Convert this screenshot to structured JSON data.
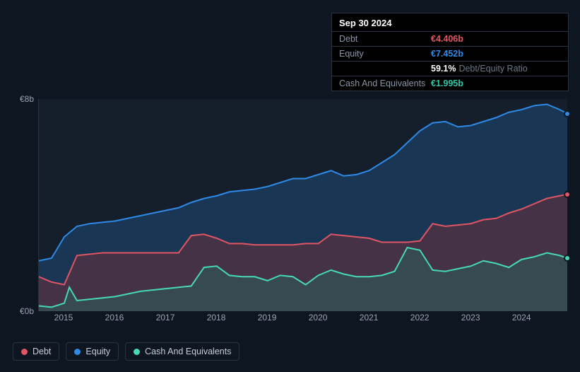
{
  "tooltip": {
    "date": "Sep 30 2024",
    "rows": [
      {
        "label": "Debt",
        "value": "€4.406b",
        "color": "#e05563",
        "extra": ""
      },
      {
        "label": "Equity",
        "value": "€7.452b",
        "color": "#2e8ae6",
        "extra": ""
      },
      {
        "label": "",
        "value": "59.1%",
        "color": "#ffffff",
        "extra": "Debt/Equity Ratio"
      },
      {
        "label": "Cash And Equivalents",
        "value": "€1.995b",
        "color": "#30c8a8",
        "extra": ""
      }
    ]
  },
  "chart": {
    "type": "area-line",
    "background_color": "#151e2b",
    "page_background": "#0e1621",
    "grid_color": "#2a3340",
    "y": {
      "min": 0,
      "max": 8,
      "ticks": [
        {
          "v": 0,
          "label": "€0b"
        },
        {
          "v": 8,
          "label": "€8b"
        }
      ],
      "label_color": "#9aa4b2",
      "label_fontsize": 12
    },
    "x": {
      "min": 2014.5,
      "max": 2024.9,
      "ticks": [
        2015,
        2016,
        2017,
        2018,
        2019,
        2020,
        2021,
        2022,
        2023,
        2024
      ],
      "label_color": "#9aa4b2",
      "label_fontsize": 12
    },
    "series": {
      "equity": {
        "label": "Equity",
        "line_color": "#2e8ae6",
        "fill_color": "#1f4a78",
        "fill_opacity": 0.55,
        "line_width": 2,
        "end_y": 7.45,
        "data": [
          [
            2014.5,
            1.9
          ],
          [
            2014.75,
            2.0
          ],
          [
            2015.0,
            2.8
          ],
          [
            2015.25,
            3.2
          ],
          [
            2015.5,
            3.3
          ],
          [
            2015.75,
            3.35
          ],
          [
            2016.0,
            3.4
          ],
          [
            2016.25,
            3.5
          ],
          [
            2016.5,
            3.6
          ],
          [
            2016.75,
            3.7
          ],
          [
            2017.0,
            3.8
          ],
          [
            2017.25,
            3.9
          ],
          [
            2017.5,
            4.1
          ],
          [
            2017.75,
            4.25
          ],
          [
            2018.0,
            4.35
          ],
          [
            2018.25,
            4.5
          ],
          [
            2018.5,
            4.55
          ],
          [
            2018.75,
            4.6
          ],
          [
            2019.0,
            4.7
          ],
          [
            2019.25,
            4.85
          ],
          [
            2019.5,
            5.0
          ],
          [
            2019.75,
            5.0
          ],
          [
            2020.0,
            5.15
          ],
          [
            2020.25,
            5.3
          ],
          [
            2020.5,
            5.1
          ],
          [
            2020.75,
            5.15
          ],
          [
            2021.0,
            5.3
          ],
          [
            2021.25,
            5.6
          ],
          [
            2021.5,
            5.9
          ],
          [
            2021.75,
            6.35
          ],
          [
            2022.0,
            6.8
          ],
          [
            2022.25,
            7.1
          ],
          [
            2022.5,
            7.15
          ],
          [
            2022.75,
            6.95
          ],
          [
            2023.0,
            7.0
          ],
          [
            2023.25,
            7.15
          ],
          [
            2023.5,
            7.3
          ],
          [
            2023.75,
            7.5
          ],
          [
            2024.0,
            7.6
          ],
          [
            2024.25,
            7.75
          ],
          [
            2024.5,
            7.8
          ],
          [
            2024.75,
            7.6
          ],
          [
            2024.9,
            7.45
          ]
        ]
      },
      "debt": {
        "label": "Debt",
        "line_color": "#e05563",
        "fill_color": "#6a2f3b",
        "fill_opacity": 0.55,
        "line_width": 2,
        "end_y": 4.41,
        "data": [
          [
            2014.5,
            1.3
          ],
          [
            2014.75,
            1.1
          ],
          [
            2015.0,
            1.0
          ],
          [
            2015.25,
            2.1
          ],
          [
            2015.5,
            2.15
          ],
          [
            2015.75,
            2.2
          ],
          [
            2016.0,
            2.2
          ],
          [
            2016.25,
            2.2
          ],
          [
            2016.5,
            2.2
          ],
          [
            2016.75,
            2.2
          ],
          [
            2017.0,
            2.2
          ],
          [
            2017.25,
            2.2
          ],
          [
            2017.5,
            2.85
          ],
          [
            2017.75,
            2.9
          ],
          [
            2018.0,
            2.75
          ],
          [
            2018.25,
            2.55
          ],
          [
            2018.5,
            2.55
          ],
          [
            2018.75,
            2.5
          ],
          [
            2019.0,
            2.5
          ],
          [
            2019.25,
            2.5
          ],
          [
            2019.5,
            2.5
          ],
          [
            2019.75,
            2.55
          ],
          [
            2020.0,
            2.55
          ],
          [
            2020.25,
            2.9
          ],
          [
            2020.5,
            2.85
          ],
          [
            2020.75,
            2.8
          ],
          [
            2021.0,
            2.75
          ],
          [
            2021.25,
            2.6
          ],
          [
            2021.5,
            2.6
          ],
          [
            2021.75,
            2.6
          ],
          [
            2022.0,
            2.65
          ],
          [
            2022.25,
            3.3
          ],
          [
            2022.5,
            3.2
          ],
          [
            2022.75,
            3.25
          ],
          [
            2023.0,
            3.3
          ],
          [
            2023.25,
            3.45
          ],
          [
            2023.5,
            3.5
          ],
          [
            2023.75,
            3.7
          ],
          [
            2024.0,
            3.85
          ],
          [
            2024.25,
            4.05
          ],
          [
            2024.5,
            4.25
          ],
          [
            2024.75,
            4.35
          ],
          [
            2024.9,
            4.41
          ]
        ]
      },
      "cash": {
        "label": "Cash And Equivalents",
        "line_color": "#46d9b8",
        "fill_color": "#2a5f58",
        "fill_opacity": 0.55,
        "line_width": 2,
        "end_y": 2.0,
        "data": [
          [
            2014.5,
            0.2
          ],
          [
            2014.75,
            0.15
          ],
          [
            2015.0,
            0.3
          ],
          [
            2015.1,
            0.9
          ],
          [
            2015.25,
            0.4
          ],
          [
            2015.5,
            0.45
          ],
          [
            2015.75,
            0.5
          ],
          [
            2016.0,
            0.55
          ],
          [
            2016.25,
            0.65
          ],
          [
            2016.5,
            0.75
          ],
          [
            2016.75,
            0.8
          ],
          [
            2017.0,
            0.85
          ],
          [
            2017.25,
            0.9
          ],
          [
            2017.5,
            0.95
          ],
          [
            2017.75,
            1.65
          ],
          [
            2018.0,
            1.7
          ],
          [
            2018.25,
            1.35
          ],
          [
            2018.5,
            1.3
          ],
          [
            2018.75,
            1.3
          ],
          [
            2019.0,
            1.15
          ],
          [
            2019.25,
            1.35
          ],
          [
            2019.5,
            1.3
          ],
          [
            2019.75,
            1.0
          ],
          [
            2020.0,
            1.35
          ],
          [
            2020.25,
            1.55
          ],
          [
            2020.5,
            1.4
          ],
          [
            2020.75,
            1.3
          ],
          [
            2021.0,
            1.3
          ],
          [
            2021.25,
            1.35
          ],
          [
            2021.5,
            1.5
          ],
          [
            2021.75,
            2.4
          ],
          [
            2022.0,
            2.3
          ],
          [
            2022.25,
            1.55
          ],
          [
            2022.5,
            1.5
          ],
          [
            2022.75,
            1.6
          ],
          [
            2023.0,
            1.7
          ],
          [
            2023.25,
            1.9
          ],
          [
            2023.5,
            1.8
          ],
          [
            2023.75,
            1.65
          ],
          [
            2024.0,
            1.95
          ],
          [
            2024.25,
            2.05
          ],
          [
            2024.5,
            2.2
          ],
          [
            2024.75,
            2.1
          ],
          [
            2024.9,
            2.0
          ]
        ]
      }
    }
  },
  "legend": [
    {
      "label": "Debt",
      "color": "#e05563"
    },
    {
      "label": "Equity",
      "color": "#2e8ae6"
    },
    {
      "label": "Cash And Equivalents",
      "color": "#46d9b8"
    }
  ]
}
